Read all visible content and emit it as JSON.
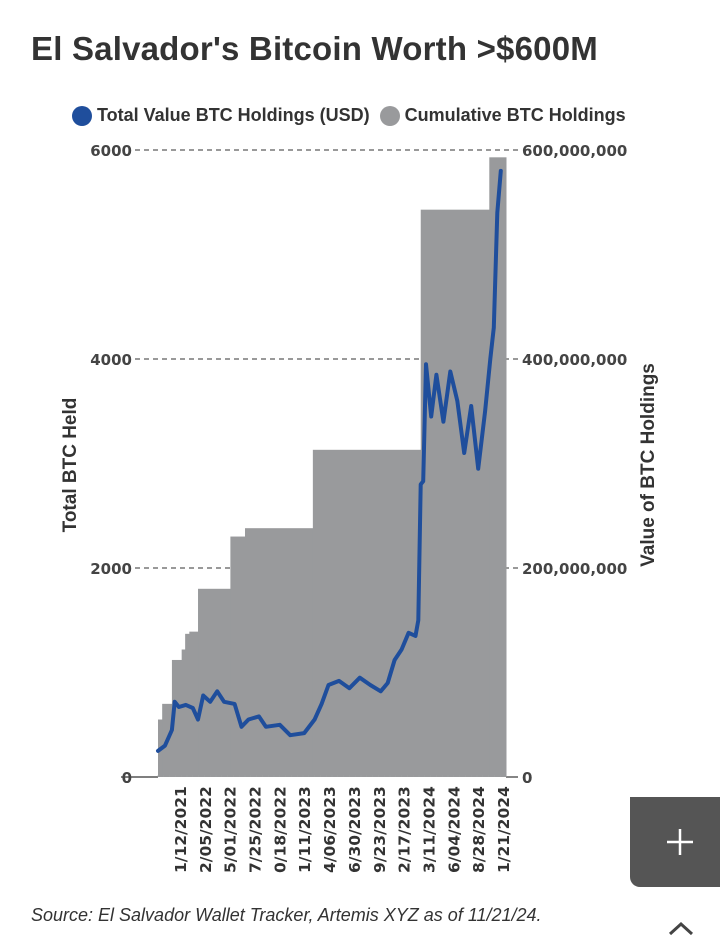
{
  "chart_data": {
    "type": "area",
    "title": "El Salvador's Bitcoin Worth >$600M",
    "legend": [
      {
        "label": "Total Value BTC Holdings (USD)",
        "color": "#1f4e9c",
        "type": "line"
      },
      {
        "label": "Cumulative BTC Holdings",
        "color": "#999a9c",
        "type": "area"
      }
    ],
    "legend_position": "top",
    "ylabel_left": "Total BTC Held",
    "ylabel_right": "Value of BTC Holdings",
    "ylim_left": [
      0,
      6000
    ],
    "ylim_right": [
      0,
      600000000
    ],
    "yticks_left": [
      "0",
      "2000",
      "4000",
      "6000"
    ],
    "yticks_right": [
      "0",
      "200,000,000",
      "400,000,000",
      "600,000,000"
    ],
    "grid": "dashed horizontal",
    "x_tick_labels": [
      "1/12/2021",
      "2/05/2022",
      "5/01/2022",
      "7/25/2022",
      "0/18/2022",
      "1/11/2023",
      "4/06/2023",
      "6/30/2023",
      "9/23/2023",
      "2/17/2023",
      "3/11/2024",
      "6/04/2024",
      "8/28/2024",
      "1/21/2024"
    ],
    "x_range": [
      0,
      1
    ],
    "cumulative_btc_steps": [
      {
        "x": 0.0,
        "value": 550
      },
      {
        "x": 0.012,
        "value": 700
      },
      {
        "x": 0.04,
        "value": 1120
      },
      {
        "x": 0.068,
        "value": 1220
      },
      {
        "x": 0.078,
        "value": 1370
      },
      {
        "x": 0.09,
        "value": 1391
      },
      {
        "x": 0.115,
        "value": 1801
      },
      {
        "x": 0.208,
        "value": 2301
      },
      {
        "x": 0.25,
        "value": 2381
      },
      {
        "x": 0.445,
        "value": 3131
      },
      {
        "x": 0.755,
        "value": 5429
      },
      {
        "x": 0.952,
        "value": 5930
      },
      {
        "x": 1.0,
        "value": 5930
      }
    ],
    "usd_value_series": [
      {
        "x": 0.0,
        "value": 25000000
      },
      {
        "x": 0.02,
        "value": 30000000
      },
      {
        "x": 0.04,
        "value": 45000000
      },
      {
        "x": 0.048,
        "value": 72000000
      },
      {
        "x": 0.06,
        "value": 67000000
      },
      {
        "x": 0.08,
        "value": 69000000
      },
      {
        "x": 0.1,
        "value": 66000000
      },
      {
        "x": 0.115,
        "value": 55000000
      },
      {
        "x": 0.13,
        "value": 78000000
      },
      {
        "x": 0.15,
        "value": 72000000
      },
      {
        "x": 0.17,
        "value": 82000000
      },
      {
        "x": 0.19,
        "value": 72000000
      },
      {
        "x": 0.22,
        "value": 70000000
      },
      {
        "x": 0.24,
        "value": 48000000
      },
      {
        "x": 0.26,
        "value": 55000000
      },
      {
        "x": 0.29,
        "value": 58000000
      },
      {
        "x": 0.31,
        "value": 48000000
      },
      {
        "x": 0.35,
        "value": 50000000
      },
      {
        "x": 0.38,
        "value": 40000000
      },
      {
        "x": 0.42,
        "value": 42000000
      },
      {
        "x": 0.45,
        "value": 55000000
      },
      {
        "x": 0.47,
        "value": 70000000
      },
      {
        "x": 0.49,
        "value": 88000000
      },
      {
        "x": 0.52,
        "value": 92000000
      },
      {
        "x": 0.55,
        "value": 85000000
      },
      {
        "x": 0.58,
        "value": 95000000
      },
      {
        "x": 0.61,
        "value": 88000000
      },
      {
        "x": 0.64,
        "value": 82000000
      },
      {
        "x": 0.66,
        "value": 90000000
      },
      {
        "x": 0.68,
        "value": 112000000
      },
      {
        "x": 0.7,
        "value": 122000000
      },
      {
        "x": 0.72,
        "value": 138000000
      },
      {
        "x": 0.74,
        "value": 135000000
      },
      {
        "x": 0.748,
        "value": 150000000
      },
      {
        "x": 0.755,
        "value": 280000000
      },
      {
        "x": 0.762,
        "value": 283000000
      },
      {
        "x": 0.77,
        "value": 395000000
      },
      {
        "x": 0.785,
        "value": 345000000
      },
      {
        "x": 0.8,
        "value": 385000000
      },
      {
        "x": 0.82,
        "value": 340000000
      },
      {
        "x": 0.84,
        "value": 388000000
      },
      {
        "x": 0.86,
        "value": 360000000
      },
      {
        "x": 0.88,
        "value": 310000000
      },
      {
        "x": 0.9,
        "value": 355000000
      },
      {
        "x": 0.92,
        "value": 295000000
      },
      {
        "x": 0.94,
        "value": 350000000
      },
      {
        "x": 0.955,
        "value": 400000000
      },
      {
        "x": 0.965,
        "value": 430000000
      },
      {
        "x": 0.975,
        "value": 540000000
      },
      {
        "x": 0.985,
        "value": 580000000
      }
    ]
  },
  "source_text": "Source: El Salvador Wallet Tracker, Artemis XYZ as of 11/21/24.",
  "buttons": {
    "expand": "add-icon",
    "scroll_up": "chevron-up-icon"
  }
}
